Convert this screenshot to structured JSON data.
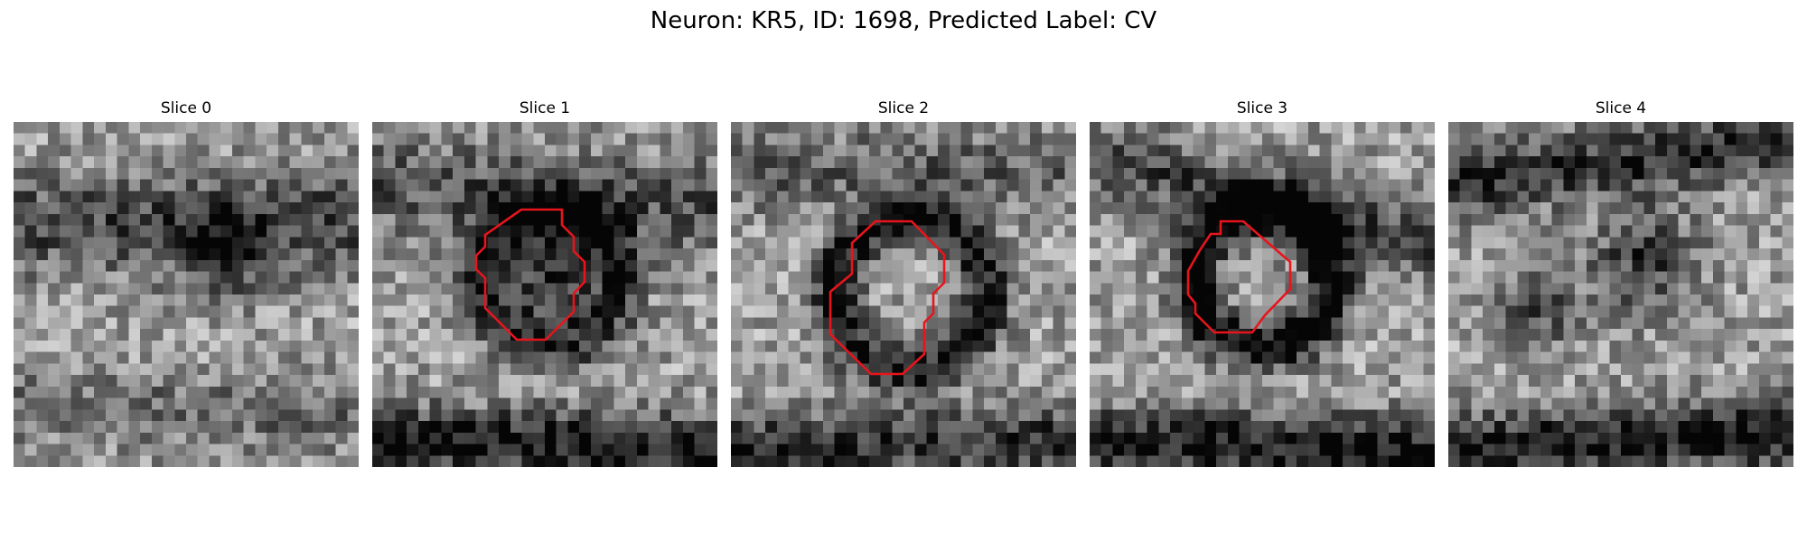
{
  "figure": {
    "title": "Neuron: KR5, ID: 1698, Predicted Label: CV"
  },
  "colors": {
    "contour": "#e8141c",
    "background": "#ffffff"
  },
  "panels": [
    {
      "title": "Slice 0",
      "has_contour": false,
      "seed": 11
    },
    {
      "title": "Slice 1",
      "has_contour": true,
      "seed": 23
    },
    {
      "title": "Slice 2",
      "has_contour": true,
      "seed": 37
    },
    {
      "title": "Slice 3",
      "has_contour": true,
      "seed": 41
    },
    {
      "title": "Slice 4",
      "has_contour": false,
      "seed": 53
    }
  ]
}
